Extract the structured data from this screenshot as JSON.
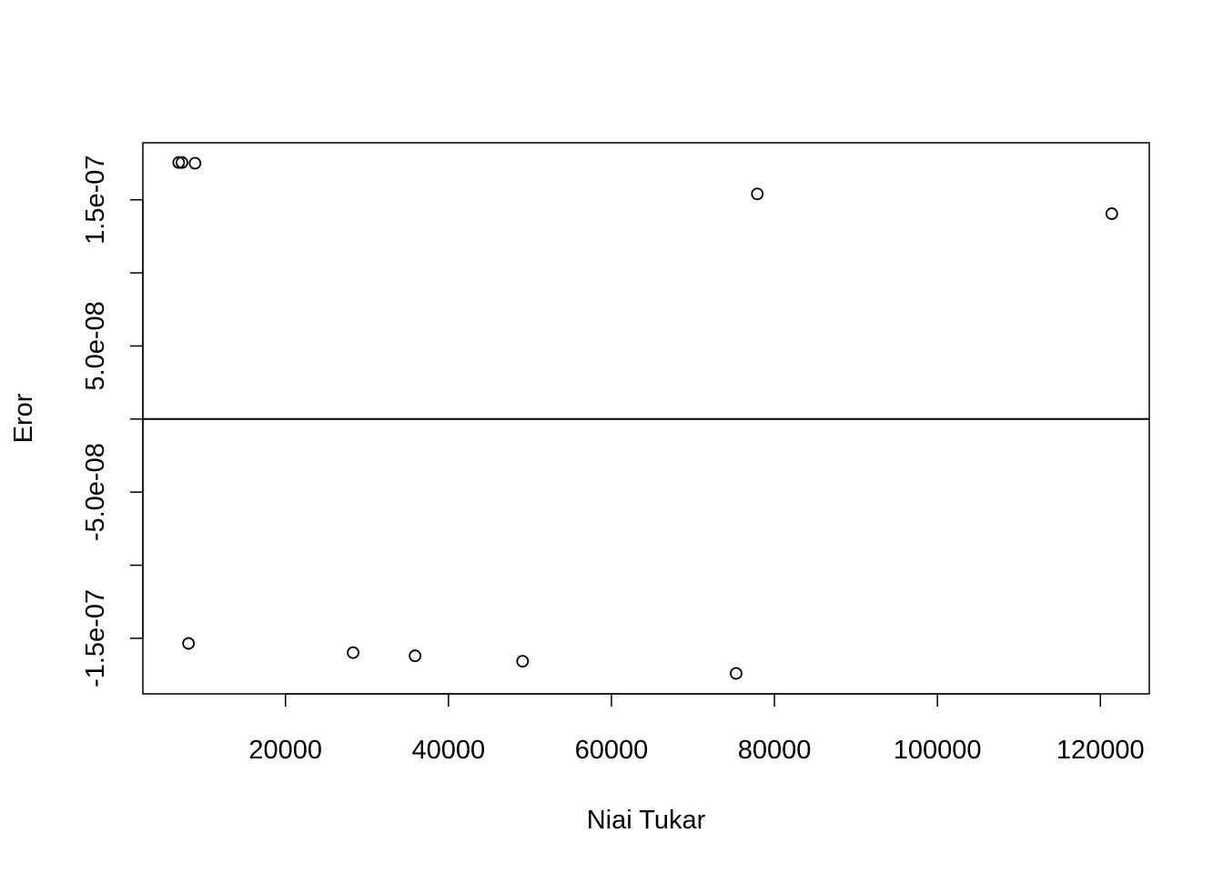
{
  "chart_data": {
    "type": "scatter",
    "title": "",
    "xlabel": "Niai Tukar",
    "ylabel": "Eror",
    "xlim": [
      2500,
      126000
    ],
    "ylim": [
      -1.88e-07,
      1.89e-07
    ],
    "x_ticks": [
      {
        "value": 20000,
        "label": "20000"
      },
      {
        "value": 40000,
        "label": "40000"
      },
      {
        "value": 60000,
        "label": "60000"
      },
      {
        "value": 80000,
        "label": "80000"
      },
      {
        "value": 100000,
        "label": "100000"
      },
      {
        "value": 120000,
        "label": "120000"
      }
    ],
    "y_ticks": [
      {
        "value": -1.5e-07,
        "label": "-1.5e-07"
      },
      {
        "value": -1e-07,
        "label": ""
      },
      {
        "value": -5e-08,
        "label": "-5.0e-08"
      },
      {
        "value": 0,
        "label": ""
      },
      {
        "value": 5e-08,
        "label": "5.0e-08"
      },
      {
        "value": 1e-07,
        "label": ""
      },
      {
        "value": 1.5e-07,
        "label": "1.5e-07"
      }
    ],
    "reference_line_y": 0,
    "grid": false,
    "points": [
      {
        "x": 6900,
        "y": 1.755e-07
      },
      {
        "x": 7300,
        "y": 1.755e-07
      },
      {
        "x": 8900,
        "y": 1.75e-07
      },
      {
        "x": 8100,
        "y": -1.535e-07
      },
      {
        "x": 28300,
        "y": -1.598e-07
      },
      {
        "x": 35900,
        "y": -1.62e-07
      },
      {
        "x": 49100,
        "y": -1.657e-07
      },
      {
        "x": 75300,
        "y": -1.74e-07
      },
      {
        "x": 77900,
        "y": 1.54e-07
      },
      {
        "x": 121400,
        "y": 1.405e-07
      }
    ]
  }
}
